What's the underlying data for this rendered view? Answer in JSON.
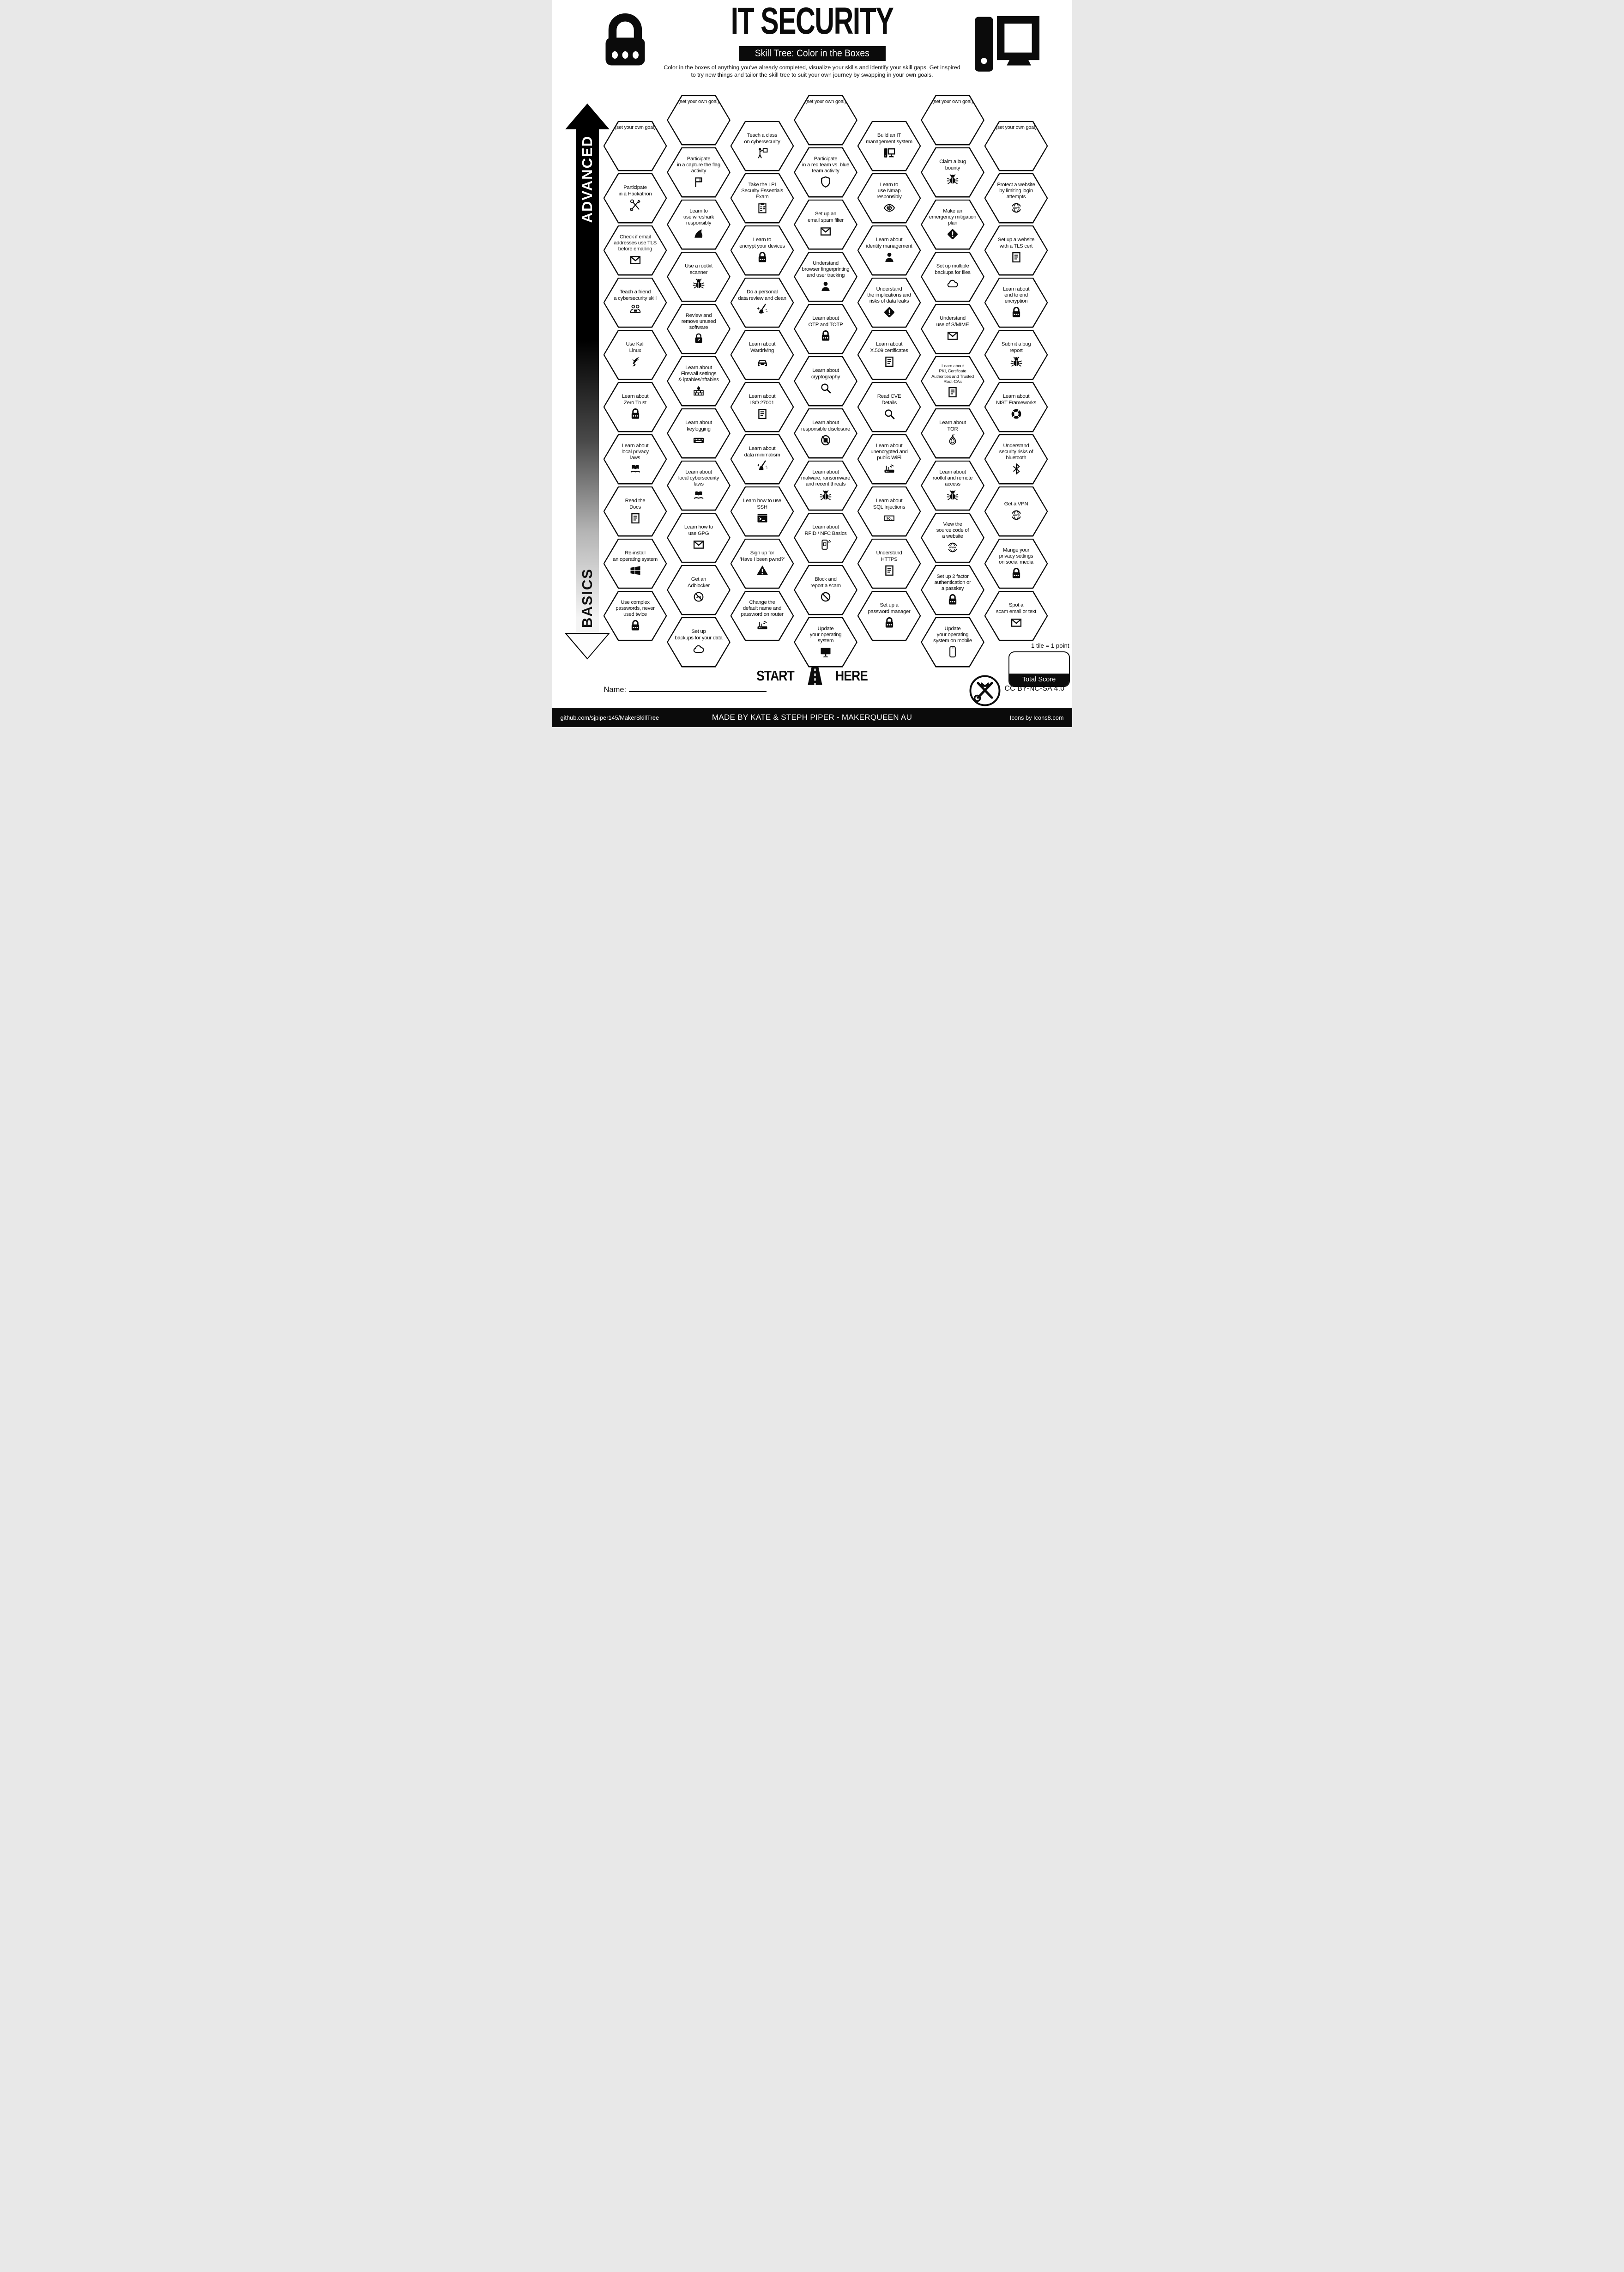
{
  "header": {
    "title": "IT SECURITY",
    "subtitle": "Skill Tree: Color in the Boxes",
    "description": "Color in the boxes of anything you've already completed, visualize your skills and identify your skill gaps.  Get inspired to try new things and tailor the skill tree to suit your own journey by swapping in your own goals.",
    "left_logo": "padlock",
    "right_logo": "desktop-computer"
  },
  "axis": {
    "top_label": "ADVANCED",
    "bottom_label": "BASICS"
  },
  "start": {
    "left": "START",
    "right": "HERE"
  },
  "name_label": "Name:",
  "score": {
    "tile_note": "1 tile = 1 point",
    "total_label": "Total Score"
  },
  "license": {
    "text": "CC BY-NC-SA 4.0"
  },
  "footer": {
    "left": "github.com/sjpiper145/MakerSkillTree",
    "center": "MADE BY KATE & STEPH PIPER  -  MAKERQUEEN AU",
    "right": "Icons by Icons8.com"
  },
  "colors": {
    "ink": "#0b0b0b",
    "paper": "#ffffff"
  },
  "hexes": [
    {
      "col": 0,
      "row": 0,
      "label": "(set your own goal)",
      "icon": null,
      "goal": true
    },
    {
      "col": 0,
      "row": 1,
      "label": "Participate\nin a Hackathon",
      "icon": "tools"
    },
    {
      "col": 0,
      "row": 2,
      "label": "Check if email\naddresses use TLS\nbefore emailing",
      "icon": "envelope"
    },
    {
      "col": 0,
      "row": 3,
      "label": "Teach a friend\na cybersecurity skill",
      "icon": "people-laptop"
    },
    {
      "col": 0,
      "row": 4,
      "label": "Use Kali\nLinux",
      "icon": "kali-dragon"
    },
    {
      "col": 0,
      "row": 5,
      "label": "Learn about\nZero Trust",
      "icon": "padlock"
    },
    {
      "col": 0,
      "row": 6,
      "label": "Learn about\nlocal privacy\nlaws",
      "icon": "book-hand"
    },
    {
      "col": 0,
      "row": 7,
      "label": "Read the\nDocs",
      "icon": "document"
    },
    {
      "col": 0,
      "row": 8,
      "label": "Re-install\nan operating system",
      "icon": "windows"
    },
    {
      "col": 0,
      "row": 9,
      "label": "Use complex\npasswords, never\nused twice",
      "icon": "padlock"
    },
    {
      "col": 1,
      "row": 0,
      "label": "(set your own goal)",
      "icon": null,
      "goal": true
    },
    {
      "col": 1,
      "row": 1,
      "label": "Participate\nin a capture the flag\nactivity",
      "icon": "flag"
    },
    {
      "col": 1,
      "row": 2,
      "label": "Learn to\nuse wireshark\nresponsibly",
      "icon": "shark-fin"
    },
    {
      "col": 1,
      "row": 3,
      "label": "Use a rootkit\nscanner",
      "icon": "bug"
    },
    {
      "col": 1,
      "row": 4,
      "label": "Review and\nremove unused\nsoftware",
      "icon": "lock-gauge"
    },
    {
      "col": 1,
      "row": 5,
      "label": "Learn about\nFirewall settings\n& iptables/nftables",
      "icon": "firewall"
    },
    {
      "col": 1,
      "row": 6,
      "label": "Learn about\nkeylogging",
      "icon": "keyboard"
    },
    {
      "col": 1,
      "row": 7,
      "label": "Learn about\nlocal cybersecurity\nlaws",
      "icon": "book-hand"
    },
    {
      "col": 1,
      "row": 8,
      "label": "Learn how to\nuse GPG",
      "icon": "envelope"
    },
    {
      "col": 1,
      "row": 9,
      "label": "Get an\nAdblocker",
      "icon": "adblock"
    },
    {
      "col": 1,
      "row": 10,
      "label": "Set up\nbackups for your data",
      "icon": "cloud"
    },
    {
      "col": 2,
      "row": 0,
      "label": "Teach a class\non cybersecurity",
      "icon": "presenter"
    },
    {
      "col": 2,
      "row": 1,
      "label": "Take the LPI\nSecurity Essentials\nExam",
      "icon": "clipboard"
    },
    {
      "col": 2,
      "row": 2,
      "label": "Learn to\nencrypt your devices",
      "icon": "padlock"
    },
    {
      "col": 2,
      "row": 3,
      "label": "Do a personal\ndata review and clean",
      "icon": "broom"
    },
    {
      "col": 2,
      "row": 4,
      "label": "Learn about\nWardriving",
      "icon": "car"
    },
    {
      "col": 2,
      "row": 5,
      "label": "Learn about\nISO 27001",
      "icon": "document"
    },
    {
      "col": 2,
      "row": 6,
      "label": "Learn about\ndata minimalism",
      "icon": "broom"
    },
    {
      "col": 2,
      "row": 7,
      "label": "Learn how to use\nSSH",
      "icon": "terminal"
    },
    {
      "col": 2,
      "row": 8,
      "label": "Sign up for\n'Have I been pwnd?'",
      "icon": "warning-triangle"
    },
    {
      "col": 2,
      "row": 9,
      "label": "Change the\ndefault name and\npassword on router",
      "icon": "router"
    },
    {
      "col": 3,
      "row": 0,
      "label": "(set your own goal)",
      "icon": null,
      "goal": true
    },
    {
      "col": 3,
      "row": 1,
      "label": "Participate\nin a red team vs. blue\nteam activity",
      "icon": "shield"
    },
    {
      "col": 3,
      "row": 2,
      "label": "Set up an\nemail spam filter",
      "icon": "envelope"
    },
    {
      "col": 3,
      "row": 3,
      "label": "Understand\nbrowser fingerprinting\nand user tracking",
      "icon": "person"
    },
    {
      "col": 3,
      "row": 4,
      "label": "Learn about\nOTP and TOTP",
      "icon": "padlock"
    },
    {
      "col": 3,
      "row": 5,
      "label": "Learn about\ncryptography",
      "icon": "magnifier"
    },
    {
      "col": 3,
      "row": 6,
      "label": "Learn about\nresponsible disclosure",
      "icon": "no-screenshot"
    },
    {
      "col": 3,
      "row": 7,
      "label": "Learn about\nmalware, ransomware\nand recent threats",
      "icon": "bug"
    },
    {
      "col": 3,
      "row": 8,
      "label": "Learn about\nRFID / NFC Basics",
      "icon": "phone-nfc"
    },
    {
      "col": 3,
      "row": 9,
      "label": "Block and\nreport a scam",
      "icon": "no-entry"
    },
    {
      "col": 3,
      "row": 10,
      "label": "Update\nyour operating\nsystem",
      "icon": "monitor"
    },
    {
      "col": 4,
      "row": 0,
      "label": "Build an IT\nmanagement system",
      "icon": "desktop"
    },
    {
      "col": 4,
      "row": 1,
      "label": "Learn to\nuse Nmap\nresponsibly",
      "icon": "eye-target"
    },
    {
      "col": 4,
      "row": 2,
      "label": "Learn about\nidentity management",
      "icon": "person"
    },
    {
      "col": 4,
      "row": 3,
      "label": "Understand\nthe implications and\nrisks of data leaks",
      "icon": "hazard-diamond"
    },
    {
      "col": 4,
      "row": 4,
      "label": "Learn about\nX.509 certificates",
      "icon": "document"
    },
    {
      "col": 4,
      "row": 5,
      "label": "Read CVE\nDetails",
      "icon": "magnifier"
    },
    {
      "col": 4,
      "row": 6,
      "label": "Learn about\nunencrypted and\npublic WiFi",
      "icon": "router"
    },
    {
      "col": 4,
      "row": 7,
      "label": "Learn about\nSQL Injections",
      "icon": "sql"
    },
    {
      "col": 4,
      "row": 8,
      "label": "Understand\nHTTPS",
      "icon": "document"
    },
    {
      "col": 4,
      "row": 9,
      "label": "Set up a\npassword manager",
      "icon": "padlock"
    },
    {
      "col": 5,
      "row": 0,
      "label": "(set your own goal)",
      "icon": null,
      "goal": true
    },
    {
      "col": 5,
      "row": 1,
      "label": "Claim a bug\nbounty",
      "icon": "bug"
    },
    {
      "col": 5,
      "row": 2,
      "label": "Make an\nemergency mitigation\nplan",
      "icon": "hazard-diamond"
    },
    {
      "col": 5,
      "row": 3,
      "label": "Set up multiple\nbackups for files",
      "icon": "cloud"
    },
    {
      "col": 5,
      "row": 4,
      "label": "Understand\nuse of S/MIME",
      "icon": "envelope"
    },
    {
      "col": 5,
      "row": 5,
      "label": "Learn about\nPKI, Certificate\nAuthorities and Trusted\nRoot-CAs",
      "icon": "document",
      "small": true
    },
    {
      "col": 5,
      "row": 6,
      "label": "Learn about\nTOR",
      "icon": "onion"
    },
    {
      "col": 5,
      "row": 7,
      "label": "Learn about\nrootkit and remote\naccess",
      "icon": "bug"
    },
    {
      "col": 5,
      "row": 8,
      "label": "View the\nsource code of\na website",
      "icon": "www-globe"
    },
    {
      "col": 5,
      "row": 9,
      "label": "Set up 2 factor\nauthentication or\na passkey",
      "icon": "padlock"
    },
    {
      "col": 5,
      "row": 10,
      "label": "Update\nyour operating\nsystem on mobile",
      "icon": "mobile"
    },
    {
      "col": 6,
      "row": 0,
      "label": "(set your own goal)",
      "icon": null,
      "goal": true
    },
    {
      "col": 6,
      "row": 1,
      "label": "Protect a website\nby limiting login\nattempts",
      "icon": "www-globe"
    },
    {
      "col": 6,
      "row": 2,
      "label": "Set up a website\nwith a TLS cert",
      "icon": "document"
    },
    {
      "col": 6,
      "row": 3,
      "label": "Learn about\nend to end\nencryption",
      "icon": "padlock"
    },
    {
      "col": 6,
      "row": 4,
      "label": "Submit a bug\nreport",
      "icon": "bug"
    },
    {
      "col": 6,
      "row": 5,
      "label": "Learn about\nNIST Frameworks",
      "icon": "segmented-ring"
    },
    {
      "col": 6,
      "row": 6,
      "label": "Understand\nsecurity risks of\nbluetooth",
      "icon": "bluetooth"
    },
    {
      "col": 6,
      "row": 7,
      "label": "Get a VPN",
      "icon": "www-globe"
    },
    {
      "col": 6,
      "row": 8,
      "label": "Mange your\nprivacy settings\non social media",
      "icon": "padlock"
    },
    {
      "col": 6,
      "row": 9,
      "label": "Spot a\nscam email or text",
      "icon": "envelope"
    }
  ]
}
